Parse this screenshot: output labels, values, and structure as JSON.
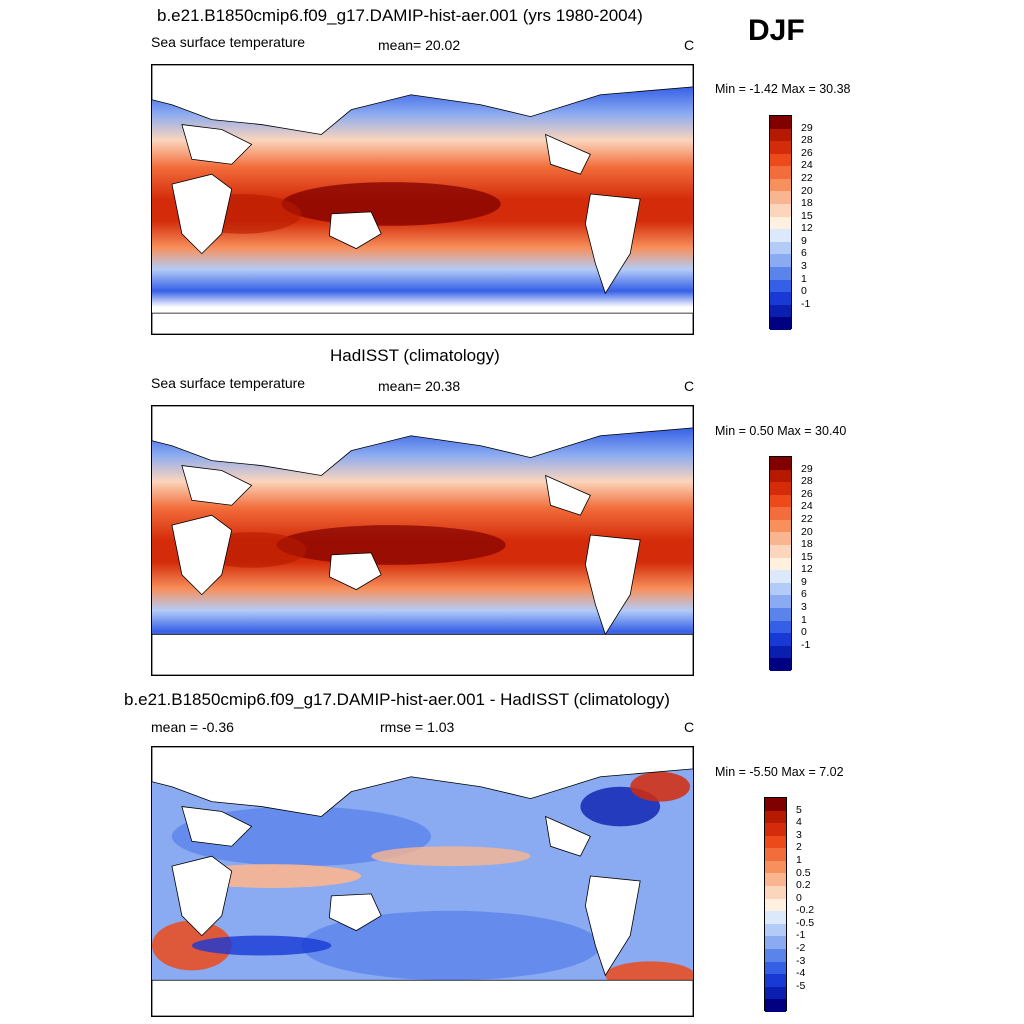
{
  "season": "DJF",
  "panels": [
    {
      "title": "b.e21.B1850cmip6.f09_g17.DAMIP-hist-aer.001 (yrs 1980-2004)",
      "left_label": "Sea surface temperature",
      "center_label": "mean=  20.02",
      "units": "C",
      "minmax": "Min =  -1.42 Max =  30.38"
    },
    {
      "title": "HadISST (climatology)",
      "left_label": "Sea surface temperature",
      "center_label": "mean=  20.38",
      "units": "C",
      "minmax": "Min =   0.50 Max =  30.40"
    },
    {
      "title": "b.e21.B1850cmip6.f09_g17.DAMIP-hist-aer.001 - HadISST (climatology)",
      "left_label": "mean =  -0.36",
      "center_label": "rmse =   1.03",
      "units": "C",
      "minmax": "Min =  -5.50 Max =   7.02"
    }
  ],
  "colorbars": {
    "sst": {
      "labels": [
        "29",
        "28",
        "26",
        "24",
        "22",
        "20",
        "18",
        "15",
        "12",
        "9",
        "6",
        "3",
        "1",
        "0",
        "-1"
      ],
      "colors": [
        "#800000",
        "#b51a00",
        "#d42c0a",
        "#ec4a1a",
        "#f26d3b",
        "#f7905c",
        "#f9b590",
        "#fbd5bc",
        "#fff0e0",
        "#dbe9fb",
        "#b3ccf7",
        "#8aaaf1",
        "#5b84eb",
        "#3560e6",
        "#1839d4",
        "#0a1fb0",
        "#000080"
      ]
    },
    "diff": {
      "labels": [
        "5",
        "4",
        "3",
        "2",
        "1",
        "0.5",
        "0.2",
        "0",
        "-0.2",
        "-0.5",
        "-1",
        "-2",
        "-3",
        "-4",
        "-5"
      ],
      "colors": [
        "#800000",
        "#b51a00",
        "#d42c0a",
        "#ec4a1a",
        "#f26d3b",
        "#f7905c",
        "#f9b590",
        "#fbd5bc",
        "#fff0e0",
        "#dbe9fb",
        "#b3ccf7",
        "#8aaaf1",
        "#5b84eb",
        "#3560e6",
        "#1839d4",
        "#0a1fb0",
        "#000080"
      ]
    }
  }
}
